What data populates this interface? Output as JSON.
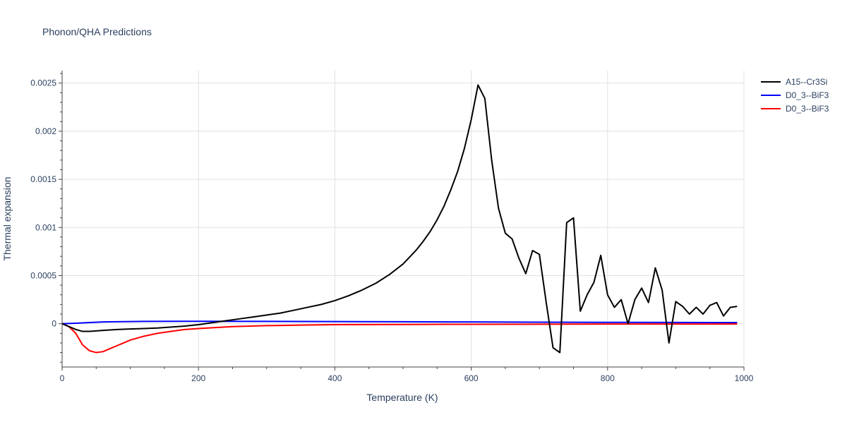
{
  "chart_data": {
    "type": "line",
    "title": "Phonon/QHA Predictions",
    "xlabel": "Temperature (K)",
    "ylabel": "Thermal expansion",
    "xlim": [
      0,
      1000
    ],
    "ylim": [
      -0.00045,
      0.00263
    ],
    "x_ticks": [
      0,
      200,
      400,
      600,
      800,
      1000
    ],
    "x_tick_labels": [
      "0",
      "200",
      "400",
      "600",
      "800",
      "1000"
    ],
    "y_ticks": [
      0,
      0.0005,
      0.001,
      0.0015,
      0.002,
      0.0025
    ],
    "y_tick_labels": [
      "0",
      "0.0005",
      "0.001",
      "0.0015",
      "0.002",
      "0.0025"
    ],
    "grid": true,
    "legend_position": "top-right",
    "series": [
      {
        "name": "A15--Cr3Si",
        "color": "#000000",
        "points": [
          [
            0,
            0
          ],
          [
            10,
            -3e-05
          ],
          [
            20,
            -6e-05
          ],
          [
            30,
            -8e-05
          ],
          [
            40,
            -8e-05
          ],
          [
            60,
            -7e-05
          ],
          [
            80,
            -6e-05
          ],
          [
            100,
            -5.5e-05
          ],
          [
            120,
            -5e-05
          ],
          [
            140,
            -4.5e-05
          ],
          [
            160,
            -3.5e-05
          ],
          [
            180,
            -2.5e-05
          ],
          [
            200,
            -1e-05
          ],
          [
            220,
            1e-05
          ],
          [
            240,
            3e-05
          ],
          [
            260,
            5e-05
          ],
          [
            280,
            7e-05
          ],
          [
            300,
            9e-05
          ],
          [
            320,
            0.00011
          ],
          [
            340,
            0.00014
          ],
          [
            360,
            0.00017
          ],
          [
            380,
            0.0002
          ],
          [
            400,
            0.00024
          ],
          [
            420,
            0.00029
          ],
          [
            440,
            0.00035
          ],
          [
            460,
            0.00042
          ],
          [
            480,
            0.00051
          ],
          [
            500,
            0.00062
          ],
          [
            520,
            0.00077
          ],
          [
            530,
            0.00086
          ],
          [
            540,
            0.00096
          ],
          [
            550,
            0.00108
          ],
          [
            560,
            0.00122
          ],
          [
            570,
            0.00139
          ],
          [
            580,
            0.00158
          ],
          [
            590,
            0.00182
          ],
          [
            600,
            0.00212
          ],
          [
            610,
            0.00248
          ],
          [
            620,
            0.00234
          ],
          [
            630,
            0.0017
          ],
          [
            640,
            0.0012
          ],
          [
            650,
            0.00094
          ],
          [
            660,
            0.00088
          ],
          [
            670,
            0.00068
          ],
          [
            680,
            0.00052
          ],
          [
            690,
            0.00076
          ],
          [
            700,
            0.00072
          ],
          [
            710,
            0.00022
          ],
          [
            720,
            -0.00025
          ],
          [
            730,
            -0.0003
          ],
          [
            740,
            0.00105
          ],
          [
            750,
            0.0011
          ],
          [
            760,
            0.00013
          ],
          [
            770,
            0.0003
          ],
          [
            780,
            0.00043
          ],
          [
            790,
            0.00071
          ],
          [
            800,
            0.0003
          ],
          [
            810,
            0.00017
          ],
          [
            820,
            0.00025
          ],
          [
            830,
            0.0
          ],
          [
            840,
            0.00025
          ],
          [
            850,
            0.00037
          ],
          [
            860,
            0.00022
          ],
          [
            870,
            0.00058
          ],
          [
            880,
            0.00035
          ],
          [
            890,
            -0.0002
          ],
          [
            900,
            0.00023
          ],
          [
            910,
            0.00018
          ],
          [
            920,
            0.0001
          ],
          [
            930,
            0.00017
          ],
          [
            940,
            0.0001
          ],
          [
            950,
            0.00019
          ],
          [
            960,
            0.00022
          ],
          [
            970,
            8e-05
          ],
          [
            980,
            0.00017
          ],
          [
            990,
            0.00018
          ]
        ]
      },
      {
        "name": "D0_3--BiF3",
        "color": "#0000ff",
        "points": [
          [
            0,
            0
          ],
          [
            20,
            5e-06
          ],
          [
            40,
            1.2e-05
          ],
          [
            60,
            1.8e-05
          ],
          [
            80,
            2e-05
          ],
          [
            120,
            2.4e-05
          ],
          [
            200,
            2.5e-05
          ],
          [
            300,
            2.4e-05
          ],
          [
            400,
            2.2e-05
          ],
          [
            500,
            2e-05
          ],
          [
            600,
            1.8e-05
          ],
          [
            700,
            1.6e-05
          ],
          [
            800,
            1.4e-05
          ],
          [
            900,
            1.3e-05
          ],
          [
            990,
            1.2e-05
          ]
        ]
      },
      {
        "name": "D0_3--BiF3",
        "color": "#ff0000",
        "points": [
          [
            0,
            0
          ],
          [
            10,
            -3e-05
          ],
          [
            20,
            -0.0001
          ],
          [
            30,
            -0.00022
          ],
          [
            40,
            -0.00028
          ],
          [
            50,
            -0.0003
          ],
          [
            60,
            -0.00029
          ],
          [
            70,
            -0.00026
          ],
          [
            80,
            -0.00023
          ],
          [
            90,
            -0.0002
          ],
          [
            100,
            -0.00017
          ],
          [
            110,
            -0.00015
          ],
          [
            120,
            -0.00013
          ],
          [
            140,
            -0.0001
          ],
          [
            160,
            -8e-05
          ],
          [
            180,
            -6e-05
          ],
          [
            200,
            -5e-05
          ],
          [
            250,
            -3e-05
          ],
          [
            300,
            -2e-05
          ],
          [
            350,
            -1.5e-05
          ],
          [
            400,
            -1e-05
          ],
          [
            500,
            -8e-06
          ],
          [
            600,
            -6e-06
          ],
          [
            700,
            -5e-06
          ],
          [
            800,
            -4e-06
          ],
          [
            990,
            -3e-06
          ]
        ]
      }
    ]
  }
}
